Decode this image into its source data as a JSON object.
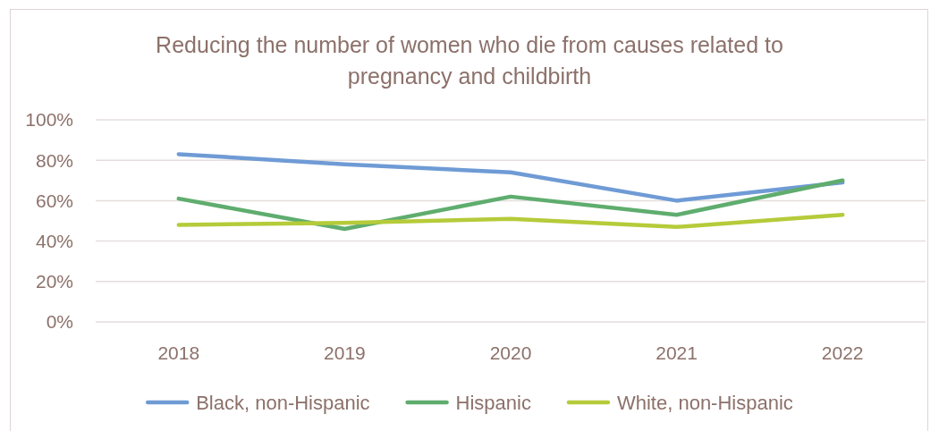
{
  "chart_data": {
    "type": "line",
    "title": "Reducing the number of women who die from causes related to pregnancy and childbirth",
    "categories": [
      "2018",
      "2019",
      "2020",
      "2021",
      "2022"
    ],
    "series": [
      {
        "name": "Black, non-Hispanic",
        "color": "#6f9bd5",
        "values": [
          83,
          78,
          74,
          60,
          69
        ]
      },
      {
        "name": "Hispanic",
        "color": "#5fad6e",
        "values": [
          61,
          46,
          62,
          53,
          70
        ]
      },
      {
        "name": "White, non-Hispanic",
        "color": "#b5cb3a",
        "values": [
          48,
          49,
          51,
          47,
          53
        ]
      }
    ],
    "ylim": [
      0,
      100
    ],
    "yticks": [
      {
        "value": 0,
        "label": "0%"
      },
      {
        "value": 20,
        "label": "20%"
      },
      {
        "value": 40,
        "label": "40%"
      },
      {
        "value": 60,
        "label": "60%"
      },
      {
        "value": 80,
        "label": "80%"
      },
      {
        "value": 100,
        "label": "100%"
      }
    ],
    "grid": "y",
    "legend": "bottom",
    "line_style": "solid",
    "marker": "none"
  }
}
